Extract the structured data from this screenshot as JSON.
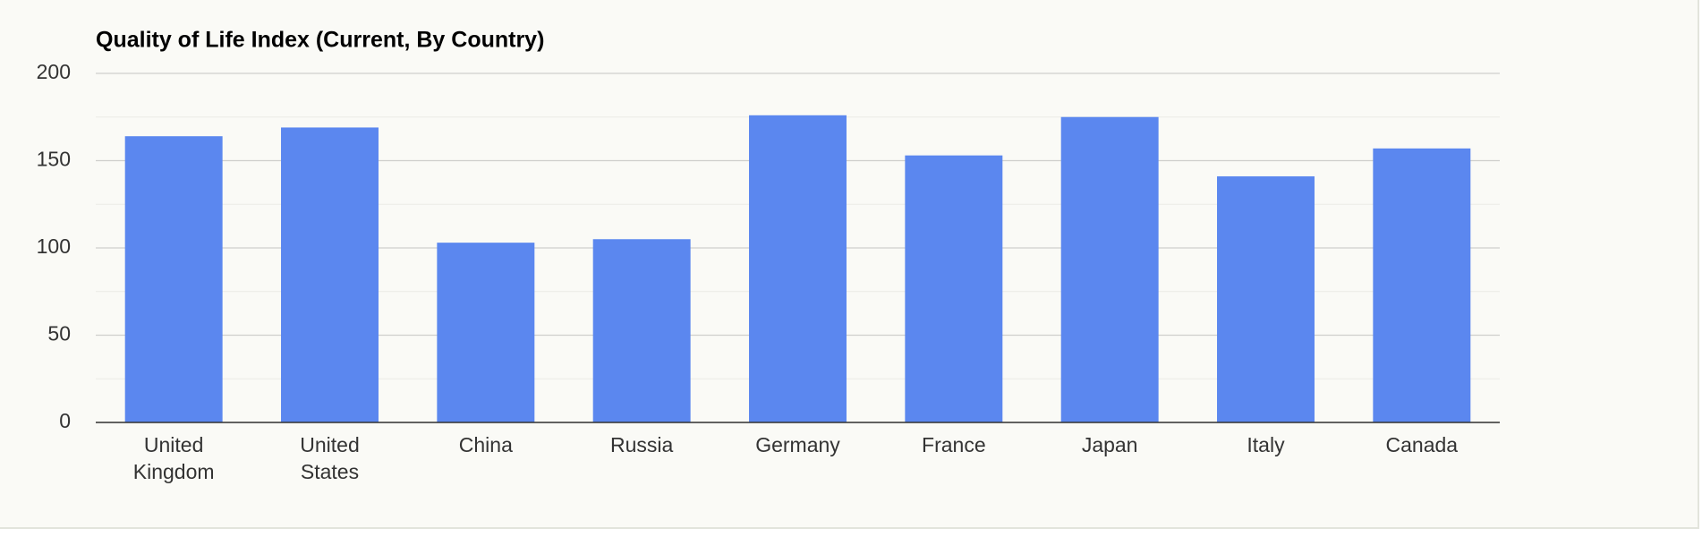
{
  "chart_data": {
    "type": "bar",
    "title": "Quality of Life Index (Current, By Country)",
    "categories": [
      "United Kingdom",
      "United States",
      "China",
      "Russia",
      "Germany",
      "France",
      "Japan",
      "Italy",
      "Canada"
    ],
    "values": [
      164,
      169,
      103,
      105,
      176,
      153,
      175,
      141,
      157
    ],
    "color": "#5b87ef",
    "ylim": [
      0,
      200
    ],
    "yticks": [
      0,
      50,
      100,
      150,
      200
    ],
    "minor_yticks": [
      25,
      75,
      125,
      175
    ],
    "grid": true
  }
}
